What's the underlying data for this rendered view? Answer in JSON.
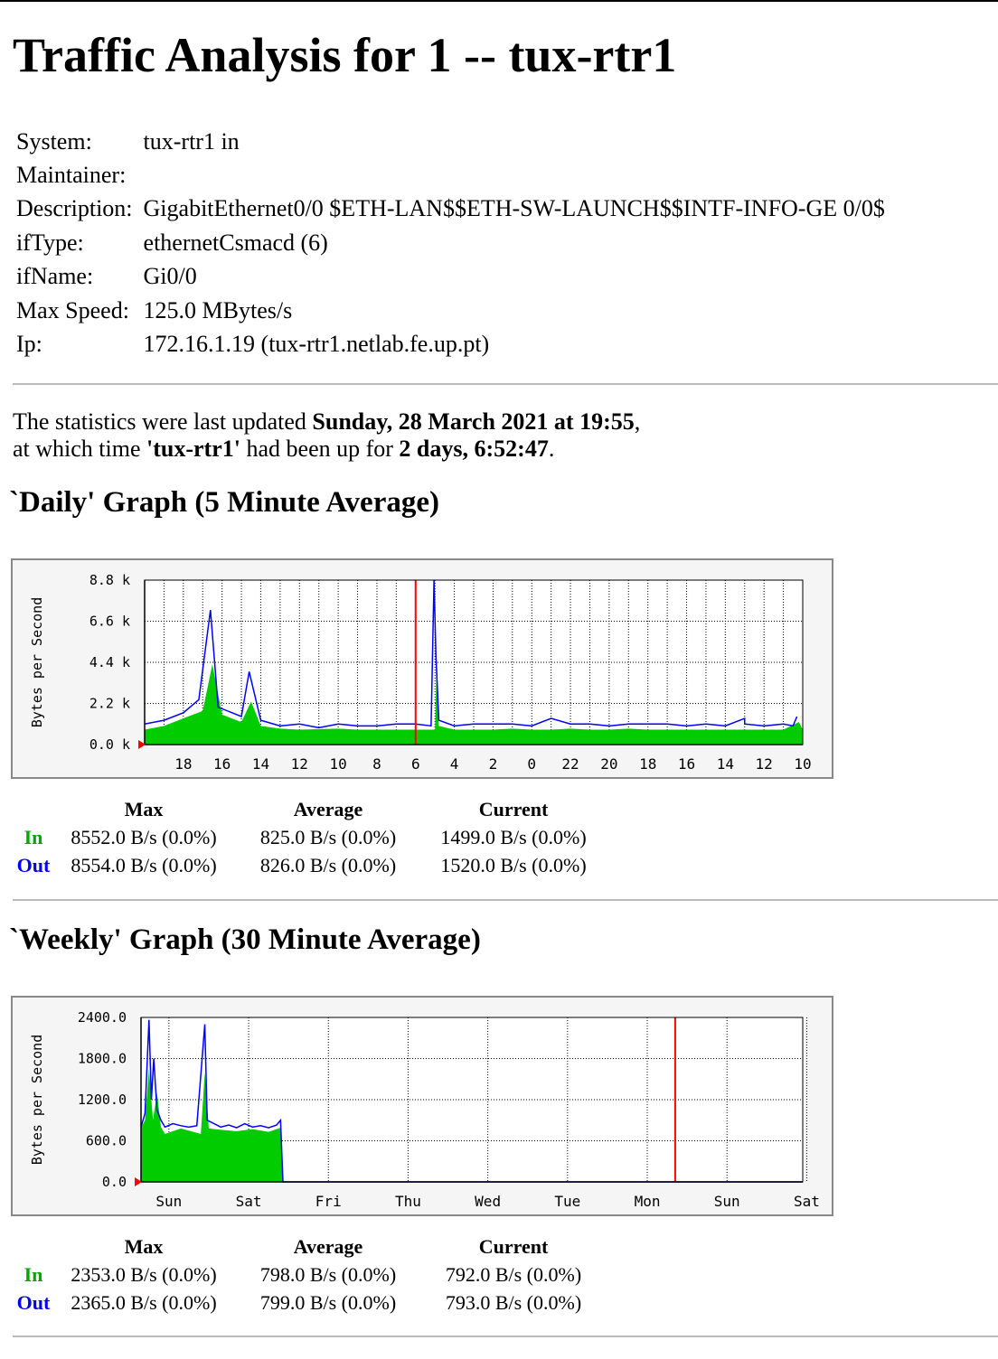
{
  "page": {
    "title": "Traffic Analysis for 1 -- tux-rtr1",
    "info": [
      {
        "key": "System:",
        "value": "tux-rtr1 in"
      },
      {
        "key": "Maintainer:",
        "value": ""
      },
      {
        "key": "Description:",
        "value": "GigabitEthernet0/0 $ETH-LAN$$ETH-SW-LAUNCH$$INTF-INFO-GE 0/0$"
      },
      {
        "key": "ifType:",
        "value": "ethernetCsmacd (6)"
      },
      {
        "key": "ifName:",
        "value": "Gi0/0"
      },
      {
        "key": "Max Speed:",
        "value": "125.0 MBytes/s"
      },
      {
        "key": "Ip:",
        "value": "172.16.1.19 (tux-rtr1.netlab.fe.up.pt)"
      }
    ],
    "stats": {
      "prefix1": "The statistics were last updated ",
      "updated": "Sunday, 28 March 2021 at 19:55",
      "suffix1": ",",
      "prefix2": "at which time ",
      "host": "'tux-rtr1'",
      "mid2": " had been up for ",
      "uptime": "2 days, 6:52:47",
      "suffix2": "."
    }
  },
  "colors": {
    "in": "#00cc00",
    "out": "#0000ff",
    "now": "#ff0000",
    "grid": "#000000",
    "frame_bg": "#f5f5f5"
  },
  "daily": {
    "heading": "`Daily' Graph (5 Minute Average)",
    "summary": {
      "headers": [
        "Max",
        "Average",
        "Current"
      ],
      "in": {
        "label": "In",
        "max": "8552.0 B/s (0.0%)",
        "avg": "825.0 B/s (0.0%)",
        "cur": "1499.0 B/s (0.0%)"
      },
      "out": {
        "label": "Out",
        "max": "8554.0 B/s (0.0%)",
        "avg": "826.0 B/s (0.0%)",
        "cur": "1520.0 B/s (0.0%)"
      }
    }
  },
  "weekly": {
    "heading": "`Weekly' Graph (30 Minute Average)",
    "summary": {
      "headers": [
        "Max",
        "Average",
        "Current"
      ],
      "in": {
        "label": "In",
        "max": "2353.0 B/s (0.0%)",
        "avg": "798.0 B/s (0.0%)",
        "cur": "792.0 B/s (0.0%)"
      },
      "out": {
        "label": "Out",
        "max": "2365.0 B/s (0.0%)",
        "avg": "799.0 B/s (0.0%)",
        "cur": "793.0 B/s (0.0%)"
      }
    }
  },
  "chart_data": [
    {
      "type": "area",
      "ylabel": "Bytes per Second",
      "ylim": [
        0,
        8800
      ],
      "yticks": [
        "0.0 k",
        "2.2 k",
        "4.4 k",
        "6.6 k",
        "8.8 k"
      ],
      "ytick_values": [
        0,
        2200,
        4400,
        6600,
        8800
      ],
      "xticks": [
        "18",
        "16",
        "14",
        "12",
        "10",
        "8",
        "6",
        "4",
        "2",
        "0",
        "22",
        "20",
        "18",
        "16",
        "14",
        "12",
        "10"
      ],
      "x_unit": "hours ago",
      "x_range": [
        34,
        0
      ],
      "now_line_x": 20,
      "series": [
        {
          "name": "In",
          "style": "area",
          "points": [
            [
              34,
              800
            ],
            [
              33,
              1000
            ],
            [
              32,
              1400
            ],
            [
              31,
              1800
            ],
            [
              30.5,
              4300
            ],
            [
              30,
              1600
            ],
            [
              29,
              1200
            ],
            [
              28.5,
              2300
            ],
            [
              28,
              1000
            ],
            [
              27,
              850
            ],
            [
              26,
              800
            ],
            [
              24,
              850
            ],
            [
              22,
              800
            ],
            [
              20,
              800
            ],
            [
              18,
              800
            ],
            [
              16,
              800
            ],
            [
              14,
              800
            ],
            [
              12,
              850
            ],
            [
              10,
              800
            ],
            [
              8,
              800
            ],
            [
              6,
              800
            ],
            [
              4,
              800
            ],
            [
              2,
              800
            ],
            [
              0,
              800
            ],
            [
              23,
              800
            ],
            [
              21,
              800
            ],
            [
              19,
              800
            ],
            [
              18.9,
              4600
            ],
            [
              18.8,
              1000
            ],
            [
              17,
              800
            ],
            [
              15,
              850
            ],
            [
              13,
              800
            ],
            [
              11,
              800
            ],
            [
              9,
              850
            ],
            [
              7,
              800
            ],
            [
              5,
              800
            ],
            [
              3,
              800
            ],
            [
              1,
              800
            ],
            [
              0.2,
              1200
            ]
          ]
        },
        {
          "name": "Out",
          "style": "line",
          "points": [
            [
              34,
              1100
            ],
            [
              33,
              1300
            ],
            [
              32,
              1700
            ],
            [
              31.2,
              2400
            ],
            [
              30.6,
              7200
            ],
            [
              30.2,
              2000
            ],
            [
              29,
              1500
            ],
            [
              28.6,
              3900
            ],
            [
              28,
              1300
            ],
            [
              27,
              1000
            ],
            [
              26,
              1100
            ],
            [
              25,
              900
            ],
            [
              24,
              1100
            ],
            [
              22,
              1000
            ],
            [
              20,
              1100
            ],
            [
              18,
              1000
            ],
            [
              16,
              1100
            ],
            [
              14,
              1000
            ],
            [
              12,
              1100
            ],
            [
              10,
              1000
            ],
            [
              8,
              1100
            ],
            [
              6,
              1000
            ],
            [
              4,
              1000
            ],
            [
              3,
              1400
            ],
            [
              2,
              1000
            ],
            [
              0.5,
              1000
            ],
            [
              23,
              1000
            ],
            [
              21,
              1100
            ],
            [
              19.2,
              1000
            ],
            [
              19.05,
              8800
            ],
            [
              18.95,
              4700
            ],
            [
              18.8,
              1300
            ],
            [
              17,
              1100
            ],
            [
              16,
              1100
            ],
            [
              15,
              1100
            ],
            [
              13,
              1400
            ],
            [
              11,
              1100
            ],
            [
              9,
              1100
            ],
            [
              7,
              1100
            ],
            [
              5,
              1100
            ],
            [
              3,
              1100
            ],
            [
              1,
              1100
            ],
            [
              0.3,
              1500
            ]
          ]
        }
      ]
    },
    {
      "type": "area",
      "ylabel": "Bytes per Second",
      "ylim": [
        0,
        2400
      ],
      "yticks": [
        "0.0",
        "600.0",
        "1200.0",
        "1800.0",
        "2400.0"
      ],
      "ytick_values": [
        0,
        600,
        1200,
        1800,
        2400
      ],
      "xticks": [
        "Sun",
        "Sat",
        "Fri",
        "Thu",
        "Wed",
        "Tue",
        "Mon",
        "Sun",
        "Sat"
      ],
      "x_range": [
        0,
        8.3
      ],
      "now_line_x": 6.7,
      "series": [
        {
          "name": "In",
          "style": "area",
          "points": [
            [
              0,
              790
            ],
            [
              0.05,
              900
            ],
            [
              0.1,
              1650
            ],
            [
              0.15,
              900
            ],
            [
              0.2,
              1300
            ],
            [
              0.25,
              800
            ],
            [
              0.3,
              700
            ],
            [
              0.5,
              780
            ],
            [
              0.75,
              700
            ],
            [
              0.8,
              1600
            ],
            [
              0.85,
              780
            ],
            [
              1.0,
              760
            ],
            [
              1.2,
              740
            ],
            [
              1.4,
              770
            ],
            [
              1.6,
              730
            ],
            [
              1.75,
              790
            ],
            [
              1.78,
              0
            ],
            [
              8.3,
              0
            ]
          ]
        },
        {
          "name": "Out",
          "style": "line",
          "points": [
            [
              0,
              800
            ],
            [
              0.05,
              1000
            ],
            [
              0.1,
              2365
            ],
            [
              0.13,
              1200
            ],
            [
              0.16,
              1800
            ],
            [
              0.2,
              1050
            ],
            [
              0.25,
              900
            ],
            [
              0.3,
              800
            ],
            [
              0.4,
              850
            ],
            [
              0.5,
              820
            ],
            [
              0.6,
              800
            ],
            [
              0.7,
              820
            ],
            [
              0.8,
              2300
            ],
            [
              0.83,
              900
            ],
            [
              0.9,
              860
            ],
            [
              1.0,
              800
            ],
            [
              1.1,
              830
            ],
            [
              1.2,
              790
            ],
            [
              1.3,
              850
            ],
            [
              1.4,
              800
            ],
            [
              1.5,
              820
            ],
            [
              1.6,
              790
            ],
            [
              1.7,
              830
            ],
            [
              1.75,
              900
            ],
            [
              1.78,
              0
            ],
            [
              8.3,
              0
            ]
          ]
        }
      ]
    }
  ]
}
